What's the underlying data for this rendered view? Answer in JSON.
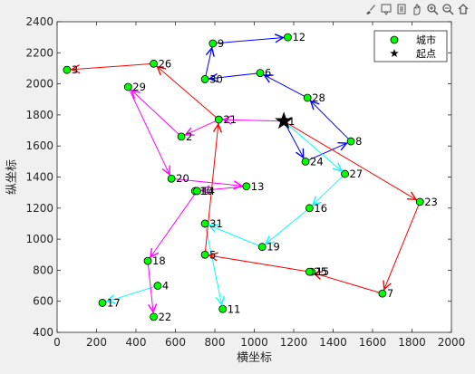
{
  "toolbar": {
    "icons": [
      "brush-icon",
      "datatip-icon",
      "export-icon",
      "pan-icon",
      "zoom-in-icon",
      "zoom-out-icon",
      "home-icon"
    ]
  },
  "chart_data": {
    "type": "scatter",
    "xlabel": "横坐标",
    "ylabel": "纵坐标",
    "xlim": [
      0,
      2000
    ],
    "ylim": [
      400,
      2400
    ],
    "xticks": [
      0,
      200,
      400,
      600,
      800,
      1000,
      1200,
      1400,
      1600,
      1800,
      2000
    ],
    "yticks": [
      400,
      600,
      800,
      1000,
      1200,
      1400,
      1600,
      1800,
      2000,
      2200,
      2400
    ],
    "grid": false,
    "legend_position": "top-right",
    "legend": [
      {
        "label": "城市",
        "marker": "circle",
        "color": "#00ff00"
      },
      {
        "label": "起点",
        "marker": "star",
        "color": "#000000"
      }
    ],
    "start": {
      "x": 1150,
      "y": 1760
    },
    "cities": [
      {
        "id": "1",
        "x": 1150,
        "y": 1760
      },
      {
        "id": "2",
        "x": 630,
        "y": 1660
      },
      {
        "id": "3",
        "x": 50,
        "y": 2090
      },
      {
        "id": "4",
        "x": 510,
        "y": 700
      },
      {
        "id": "5",
        "x": 750,
        "y": 900
      },
      {
        "id": "6",
        "x": 1030,
        "y": 2070
      },
      {
        "id": "7",
        "x": 1650,
        "y": 650
      },
      {
        "id": "8",
        "x": 1490,
        "y": 1630
      },
      {
        "id": "9",
        "x": 790,
        "y": 2260
      },
      {
        "id": "10",
        "x": 700,
        "y": 1310
      },
      {
        "id": "11",
        "x": 840,
        "y": 550
      },
      {
        "id": "12",
        "x": 1170,
        "y": 2300
      },
      {
        "id": "13",
        "x": 960,
        "y": 1340
      },
      {
        "id": "14",
        "x": 710,
        "y": 1310
      },
      {
        "id": "15",
        "x": 1290,
        "y": 790
      },
      {
        "id": "16",
        "x": 1280,
        "y": 1200
      },
      {
        "id": "17",
        "x": 230,
        "y": 590
      },
      {
        "id": "18",
        "x": 460,
        "y": 860
      },
      {
        "id": "19",
        "x": 1040,
        "y": 950
      },
      {
        "id": "20",
        "x": 580,
        "y": 1390
      },
      {
        "id": "21",
        "x": 820,
        "y": 1770
      },
      {
        "id": "22",
        "x": 490,
        "y": 500
      },
      {
        "id": "23",
        "x": 1840,
        "y": 1240
      },
      {
        "id": "24",
        "x": 1260,
        "y": 1500
      },
      {
        "id": "25",
        "x": 1280,
        "y": 790
      },
      {
        "id": "26",
        "x": 490,
        "y": 2130
      },
      {
        "id": "27",
        "x": 1460,
        "y": 1420
      },
      {
        "id": "28",
        "x": 1270,
        "y": 1910
      },
      {
        "id": "29",
        "x": 360,
        "y": 1980
      },
      {
        "id": "30",
        "x": 750,
        "y": 2030
      },
      {
        "id": "31",
        "x": 750,
        "y": 1100
      }
    ],
    "route_segments": [
      {
        "from": "1",
        "to": "21",
        "color": "#ff00ff"
      },
      {
        "from": "21",
        "to": "2",
        "color": "#ff00ff"
      },
      {
        "from": "1",
        "to": "24",
        "color": "#0000ff"
      },
      {
        "from": "8",
        "to": "28",
        "color": "#0000ff"
      },
      {
        "from": "28",
        "to": "6",
        "color": "#0000ff"
      },
      {
        "from": "6",
        "to": "30",
        "color": "#0000ff"
      },
      {
        "from": "30",
        "to": "9",
        "color": "#0000ff"
      },
      {
        "from": "9",
        "to": "12",
        "color": "#0000ff"
      },
      {
        "from": "24",
        "to": "8",
        "color": "#0000ff"
      },
      {
        "from": "1",
        "to": "27",
        "color": "#00ffff"
      },
      {
        "from": "27",
        "to": "16",
        "color": "#00ffff"
      },
      {
        "from": "16",
        "to": "19",
        "color": "#00ffff"
      },
      {
        "from": "19",
        "to": "31",
        "color": "#00ffff"
      },
      {
        "from": "31",
        "to": "11",
        "color": "#00ffff"
      },
      {
        "from": "4",
        "to": "17",
        "color": "#00ffff"
      },
      {
        "from": "1",
        "to": "23",
        "color": "#ff0000"
      },
      {
        "from": "23",
        "to": "7",
        "color": "#ff0000"
      },
      {
        "from": "7",
        "to": "25",
        "color": "#ff0000"
      },
      {
        "from": "25",
        "to": "5",
        "color": "#ff0000"
      },
      {
        "from": "5",
        "to": "21",
        "color": "#ff0000"
      },
      {
        "from": "26",
        "to": "3",
        "color": "#ff0000"
      },
      {
        "from": "21",
        "to": "26",
        "color": "#ff0000"
      },
      {
        "from": "2",
        "to": "29",
        "color": "#ff00ff"
      },
      {
        "from": "29",
        "to": "20",
        "color": "#ff00ff"
      },
      {
        "from": "20",
        "to": "13",
        "color": "#ff00ff"
      },
      {
        "from": "13",
        "to": "14",
        "color": "#ff00ff"
      },
      {
        "from": "14",
        "to": "18",
        "color": "#ff00ff"
      },
      {
        "from": "18",
        "to": "22",
        "color": "#ff00ff"
      }
    ]
  }
}
